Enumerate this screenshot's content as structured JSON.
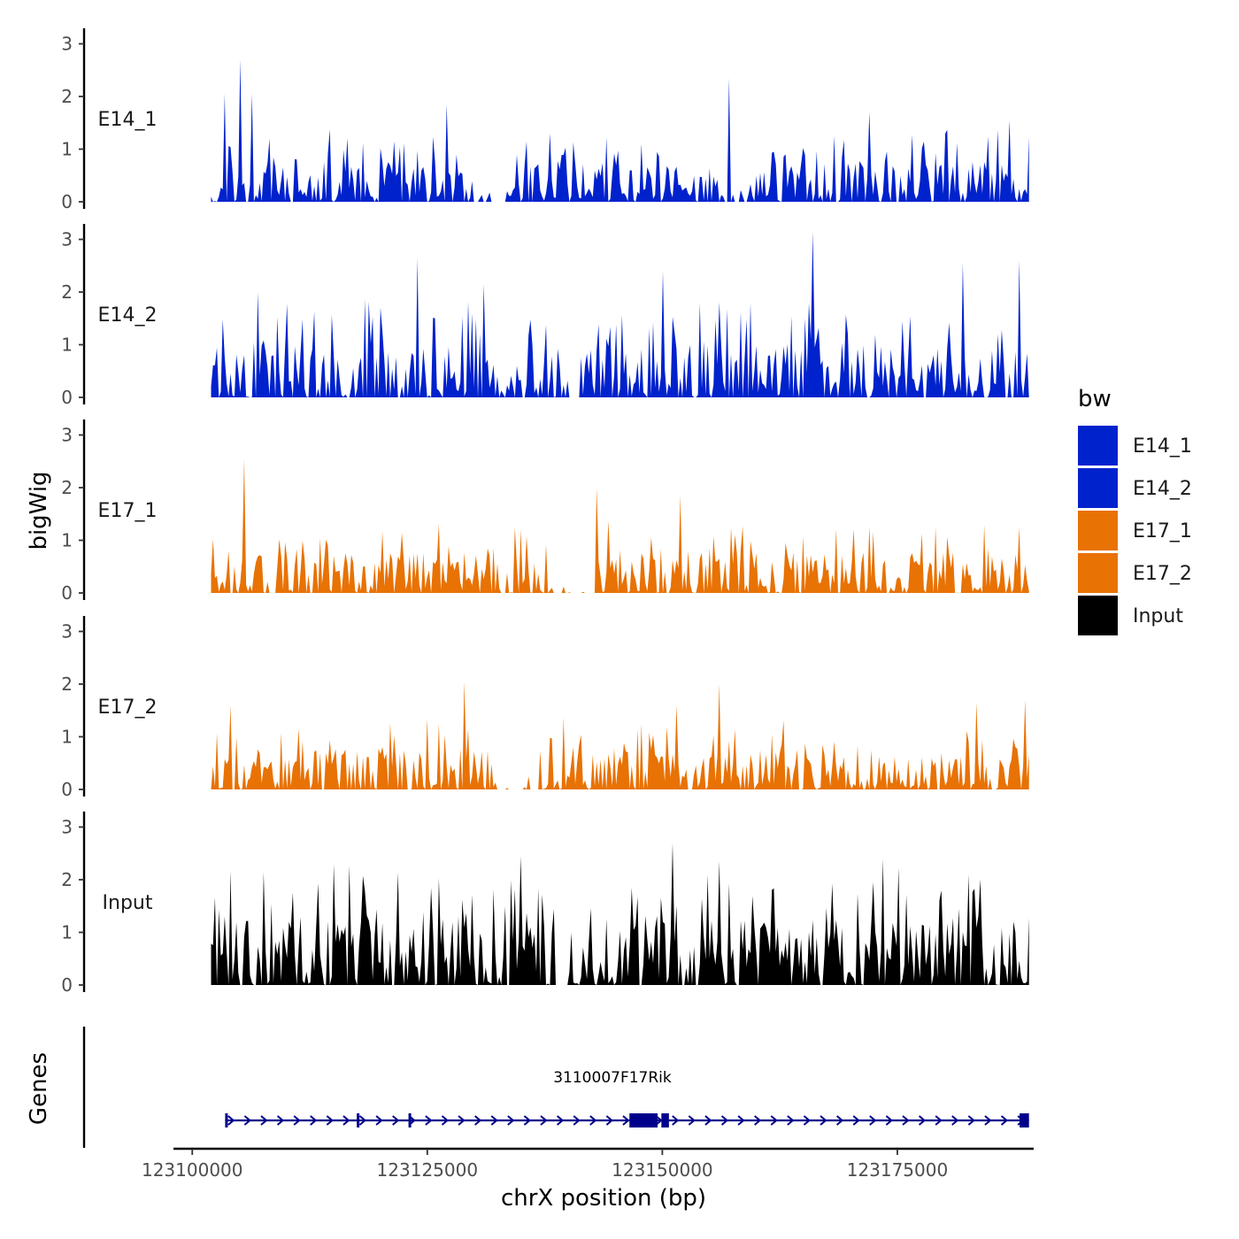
{
  "chart_data": {
    "type": "area",
    "chromosome": "chrX",
    "xlabel": "chrX position (bp)",
    "ylabel": "bigWig",
    "gene_track_label": "Genes",
    "xlim": [
      123098000,
      123189500
    ],
    "x_ticks": [
      123100000,
      123125000,
      123150000,
      123175000
    ],
    "x_tick_labels": [
      "123100000",
      "123125000",
      "123150000",
      "123175000"
    ],
    "ylim": [
      0,
      3.3
    ],
    "y_ticks": [
      0,
      1,
      2,
      3
    ],
    "y_tick_labels": [
      "0",
      "1",
      "2",
      "3"
    ],
    "signal_range": [
      123102000,
      123189000
    ],
    "colors": {
      "E14": "#0022CC",
      "E17": "#E87204",
      "Input": "#000000",
      "gene": "#00008B"
    },
    "series": [
      {
        "name": "E14_1",
        "label": "E14_1",
        "color": "#0022CC",
        "seed": 11,
        "base": 0.55,
        "zero_gaps": [
          [
            0.32,
            0.36
          ],
          [
            0.62,
            0.66
          ]
        ],
        "peaks": [
          [
            123103500,
            2.05
          ],
          [
            123105200,
            2.7
          ],
          [
            123106300,
            2.05
          ],
          [
            123127000,
            1.85
          ],
          [
            123138000,
            1.3
          ],
          [
            123157000,
            2.35
          ],
          [
            123172000,
            1.7
          ],
          [
            123187000,
            1.55
          ]
        ]
      },
      {
        "name": "E14_2",
        "label": "E14_2",
        "color": "#0022CC",
        "seed": 23,
        "base": 0.75,
        "zero_gaps": [
          [
            0.43,
            0.45
          ]
        ],
        "peaks": [
          [
            123107000,
            2.0
          ],
          [
            123124000,
            2.65
          ],
          [
            123131000,
            2.15
          ],
          [
            123150000,
            2.4
          ],
          [
            123166000,
            3.15
          ],
          [
            123182000,
            2.55
          ],
          [
            123188000,
            2.6
          ]
        ]
      },
      {
        "name": "E17_1",
        "label": "E17_1",
        "color": "#E87204",
        "seed": 37,
        "base": 0.55,
        "zero_gaps": [
          [
            0.07,
            0.08
          ],
          [
            0.41,
            0.47
          ]
        ],
        "peaks": [
          [
            123105500,
            2.55
          ],
          [
            123143000,
            2.0
          ],
          [
            123152000,
            1.85
          ],
          [
            123179000,
            1.25
          ],
          [
            123188000,
            1.25
          ]
        ]
      },
      {
        "name": "E17_2",
        "label": "E17_2",
        "color": "#E87204",
        "seed": 53,
        "base": 0.55,
        "zero_gaps": [
          [
            0.35,
            0.4
          ]
        ],
        "peaks": [
          [
            123104000,
            1.6
          ],
          [
            123129000,
            2.05
          ],
          [
            123151500,
            1.6
          ],
          [
            123156000,
            2.0
          ],
          [
            123183500,
            1.65
          ],
          [
            123188500,
            1.7
          ]
        ]
      },
      {
        "name": "Input",
        "label": "Input",
        "color": "#000000",
        "seed": 71,
        "base": 0.95,
        "zero_gaps": [
          [
            0.42,
            0.44
          ]
        ],
        "peaks": [
          [
            123107500,
            2.15
          ],
          [
            123135000,
            2.45
          ],
          [
            123151000,
            2.7
          ],
          [
            123156000,
            2.35
          ],
          [
            123173500,
            2.4
          ],
          [
            123182500,
            2.1
          ]
        ]
      }
    ],
    "gene": {
      "name": "3110007F17Rik",
      "strand": "+",
      "start": 123103500,
      "end": 123189000,
      "exons": [
        [
          123103500,
          123103700
        ],
        [
          123117500,
          123117650
        ],
        [
          123123000,
          123123120
        ],
        [
          123146500,
          123149500
        ],
        [
          123149900,
          123150700
        ],
        [
          123188000,
          123189000
        ]
      ]
    },
    "legend": {
      "title": "bw",
      "position": "right",
      "entries": [
        {
          "label": "E14_1",
          "color": "#0022CC"
        },
        {
          "label": "E14_2",
          "color": "#0022CC"
        },
        {
          "label": "E17_1",
          "color": "#E87204"
        },
        {
          "label": "E17_2",
          "color": "#E87204"
        },
        {
          "label": "Input",
          "color": "#000000"
        }
      ]
    }
  }
}
